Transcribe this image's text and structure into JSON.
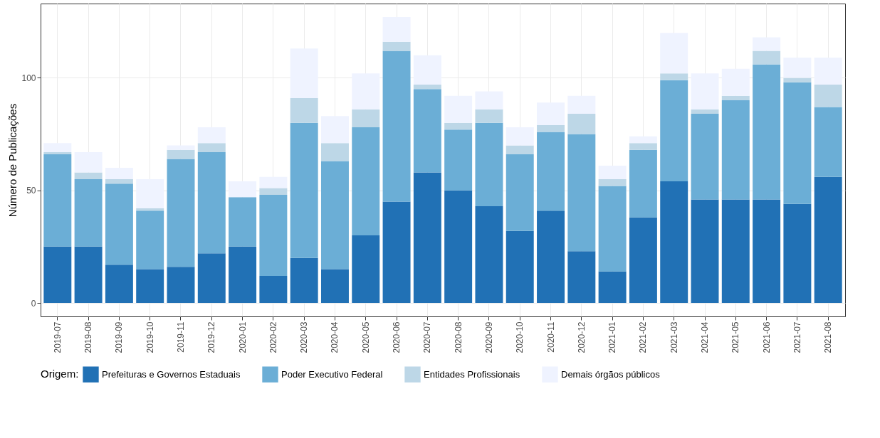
{
  "chart_data": {
    "type": "bar",
    "stacked": true,
    "ylabel": "Número de Publicações",
    "legend_title": "Origem:",
    "legend": "bottom",
    "grid": true,
    "categories": [
      "2019-07",
      "2019-08",
      "2019-09",
      "2019-10",
      "2019-11",
      "2019-12",
      "2020-01",
      "2020-02",
      "2020-03",
      "2020-04",
      "2020-05",
      "2020-06",
      "2020-07",
      "2020-08",
      "2020-09",
      "2020-10",
      "2020-11",
      "2020-12",
      "2021-01",
      "2021-02",
      "2021-03",
      "2021-04",
      "2021-05",
      "2021-06",
      "2021-07",
      "2021-08"
    ],
    "ylim": [
      -6,
      133
    ],
    "yticks": [
      0,
      50,
      100
    ],
    "series": [
      {
        "name": "Prefeituras e Governos Estaduais",
        "color": "#2171b5",
        "values": [
          25,
          25,
          17,
          15,
          16,
          22,
          25,
          12,
          20,
          15,
          30,
          45,
          58,
          50,
          43,
          32,
          41,
          23,
          14,
          38,
          54,
          46,
          46,
          46,
          44,
          56
        ]
      },
      {
        "name": "Poder Executivo Federal",
        "color": "#6baed6",
        "values": [
          41,
          30,
          36,
          26,
          48,
          45,
          22,
          36,
          60,
          48,
          48,
          67,
          37,
          27,
          37,
          34,
          35,
          52,
          38,
          30,
          45,
          38,
          44,
          60,
          54,
          31
        ]
      },
      {
        "name": "Entidades Profissionais",
        "color": "#bdd7e7",
        "values": [
          1,
          3,
          2,
          1,
          4,
          4,
          0,
          3,
          11,
          8,
          8,
          4,
          2,
          3,
          6,
          4,
          3,
          9,
          3,
          3,
          3,
          2,
          2,
          6,
          2,
          10
        ]
      },
      {
        "name": "Demais órgãos públicos",
        "color": "#eff3ff",
        "values": [
          4,
          9,
          5,
          13,
          2,
          7,
          7,
          5,
          22,
          12,
          16,
          11,
          13,
          12,
          8,
          8,
          10,
          8,
          6,
          3,
          18,
          16,
          12,
          6,
          9,
          12
        ]
      }
    ]
  }
}
